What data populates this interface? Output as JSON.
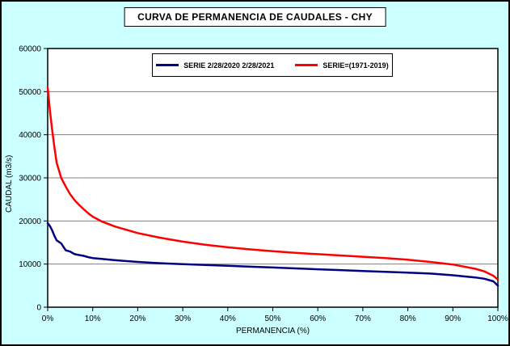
{
  "title": "CURVA DE PERMANENCIA DE CAUDALES - CHY",
  "chart_data": {
    "type": "line",
    "title": "CURVA DE PERMANENCIA DE CAUDALES - CHY",
    "xlabel": "PERMANENCIA (%)",
    "ylabel": "CAUDAL (m3/s)",
    "xlim": [
      0,
      100
    ],
    "ylim": [
      0,
      60000
    ],
    "xticks": [
      "0%",
      "10%",
      "20%",
      "30%",
      "40%",
      "50%",
      "60%",
      "70%",
      "80%",
      "90%",
      "100%"
    ],
    "yticks": [
      0,
      10000,
      20000,
      30000,
      40000,
      50000,
      60000
    ],
    "grid": "horizontal",
    "legend_position": "top-center",
    "background": "#CCFFFF",
    "plot_background": "#FFFFFF",
    "grid_color": "#808080",
    "x": [
      0,
      0.5,
      1,
      1.5,
      2,
      3,
      4,
      5,
      6,
      7,
      8,
      9,
      10,
      12,
      15,
      20,
      25,
      30,
      35,
      40,
      45,
      50,
      55,
      60,
      65,
      70,
      75,
      80,
      85,
      90,
      95,
      97,
      99,
      100
    ],
    "series": [
      {
        "name": "SERIE 2/28/2020 2/28/2021",
        "color": "#000080",
        "values": [
          19500,
          18800,
          17800,
          16500,
          15500,
          14800,
          13200,
          12900,
          12300,
          12100,
          11900,
          11600,
          11400,
          11200,
          10900,
          10500,
          10200,
          10000,
          9800,
          9600,
          9400,
          9200,
          9000,
          8800,
          8600,
          8400,
          8200,
          8000,
          7800,
          7400,
          6900,
          6600,
          6000,
          5000
        ]
      },
      {
        "name": "SERIE=(1971-2019)",
        "color": "#FF0000",
        "values": [
          51000,
          45500,
          41000,
          37000,
          33500,
          30000,
          28000,
          26200,
          24800,
          23700,
          22700,
          21800,
          21000,
          19900,
          18700,
          17200,
          16100,
          15200,
          14500,
          13900,
          13400,
          13000,
          12600,
          12300,
          12000,
          11700,
          11400,
          11000,
          10500,
          9900,
          8900,
          8300,
          7300,
          6400
        ]
      }
    ]
  }
}
